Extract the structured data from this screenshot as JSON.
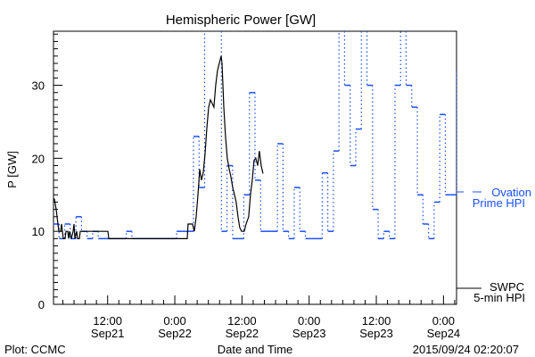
{
  "chart_data": {
    "type": "line",
    "title": "Hemispheric Power [GW]",
    "xlabel": "Date and Time",
    "ylabel": "P [GW]",
    "x_units": "hours since 2015-09-21 00:00",
    "xlim": [
      2.33,
      74.33
    ],
    "ylim": [
      0,
      37.4
    ],
    "yticks": [
      0,
      10,
      20,
      30
    ],
    "ytick_labels": [
      "0",
      "10",
      "20",
      "30"
    ],
    "y_minor_step": 1,
    "x_minor_step": 2,
    "xticks": [
      {
        "hour": 12,
        "time": "12:00",
        "date": "Sep21"
      },
      {
        "hour": 24,
        "time": "0:00",
        "date": "Sep22"
      },
      {
        "hour": 36,
        "time": "12:00",
        "date": "Sep22"
      },
      {
        "hour": 48,
        "time": "0:00",
        "date": "Sep23"
      },
      {
        "hour": 60,
        "time": "12:00",
        "date": "Sep23"
      },
      {
        "hour": 72,
        "time": "0:00",
        "date": "Sep24"
      }
    ],
    "series": [
      {
        "name": "Ovation Prime HPI",
        "legend_line1": "Ovation",
        "legend_line2": "Prime HPI",
        "color": "#1a4fff",
        "style": "step",
        "start_hour": 2.33,
        "step_hours": 1,
        "values": [
          11,
          9,
          11,
          9,
          12,
          10,
          9,
          10,
          9,
          9,
          9,
          9,
          9,
          10,
          9,
          9,
          9,
          9,
          9,
          9,
          9,
          9,
          10,
          10,
          10,
          23,
          16,
          40,
          40,
          40,
          10,
          19,
          9,
          9,
          15,
          29,
          17,
          10,
          10,
          10,
          22,
          10,
          9,
          16,
          10,
          9,
          9,
          9,
          18,
          10,
          21,
          40,
          30,
          19,
          24,
          40,
          30,
          13,
          9,
          10,
          9,
          30,
          40,
          30,
          27,
          15,
          11,
          9,
          14,
          26,
          15,
          15,
          32
        ]
      },
      {
        "name": "SWPC 5-min HPI",
        "legend_line1": "SWPC",
        "legend_line2": "5-min HPI",
        "color": "#000000",
        "style": "line",
        "x": [
          2.33,
          2.49,
          2.81,
          2.97,
          3.29,
          3.6,
          3.76,
          4.08,
          4.4,
          4.56,
          4.88,
          5.04,
          5.2,
          5.51,
          5.83,
          5.99,
          6.15,
          6.47,
          6.63,
          6.95,
          7.11,
          12.04,
          12.2,
          26.22,
          26.37,
          27.17,
          27.49,
          27.81,
          28.13,
          28.45,
          28.76,
          29.08,
          29.4,
          29.72,
          30.04,
          30.36,
          30.68,
          30.99,
          31.31,
          31.63,
          31.95,
          32.27,
          32.43,
          32.75,
          33.06,
          33.38,
          33.7,
          34.02,
          34.34,
          34.66,
          34.97,
          35.29,
          35.61,
          35.93,
          36.41,
          36.73,
          37.2,
          37.52,
          37.84,
          38.16,
          38.48,
          38.8,
          39.11,
          39.43,
          39.75
        ],
        "y": [
          14.5,
          14.4,
          13,
          12,
          10,
          10,
          11,
          9,
          9,
          10,
          10,
          9,
          10,
          9,
          10,
          11,
          9,
          10,
          9,
          9,
          10,
          10,
          9,
          9,
          11,
          11,
          10,
          12,
          15,
          18.5,
          17,
          18,
          20.5,
          24,
          27,
          28,
          27.5,
          27,
          30,
          32,
          33,
          34,
          33,
          27,
          23,
          20,
          18.6,
          17.5,
          16,
          15,
          14,
          12,
          10.5,
          10,
          10,
          11,
          12,
          15,
          17,
          19.7,
          20,
          19,
          21,
          19,
          17.9
        ]
      }
    ]
  },
  "footer": {
    "left": "Plot: CCMC",
    "right": "2015/09/24 02:20:07"
  }
}
